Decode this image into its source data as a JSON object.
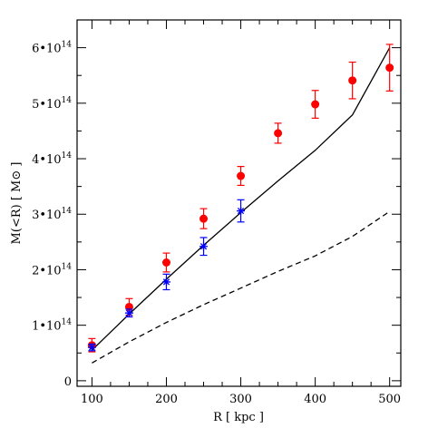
{
  "chart_data": {
    "type": "scatter",
    "title": "",
    "xlabel": "R [ kpc ]",
    "ylabel": "M(<R) [ M⊙ ]",
    "xlim": [
      80,
      515
    ],
    "ylim": [
      -0.1,
      6.5
    ],
    "y_unit_exponent": 14,
    "x_ticks": [
      100,
      200,
      300,
      400,
      500
    ],
    "x_minor_ticks": [
      125,
      150,
      175,
      225,
      250,
      275,
      325,
      350,
      375,
      425,
      450,
      475
    ],
    "y_ticks": [
      {
        "value": 0,
        "base": "0",
        "exp": ""
      },
      {
        "value": 1,
        "base": "1•10",
        "exp": "14"
      },
      {
        "value": 2,
        "base": "2•10",
        "exp": "14"
      },
      {
        "value": 3,
        "base": "3•10",
        "exp": "14"
      },
      {
        "value": 4,
        "base": "4•10",
        "exp": "14"
      },
      {
        "value": 5,
        "base": "5•10",
        "exp": "14"
      },
      {
        "value": 6,
        "base": "6•10",
        "exp": "14"
      }
    ],
    "y_minor_ticks": [
      0.5,
      1.5,
      2.5,
      3.5,
      4.5,
      5.5
    ],
    "series": [
      {
        "marker": "circle",
        "color": "#ff0000",
        "x": [
          100,
          150,
          200,
          250,
          300,
          350,
          400,
          450,
          500
        ],
        "y": [
          0.64,
          1.33,
          2.13,
          2.92,
          3.69,
          4.46,
          4.98,
          5.41,
          5.64
        ],
        "err_low": [
          0.12,
          0.15,
          0.17,
          0.18,
          0.17,
          0.18,
          0.25,
          0.33,
          0.42
        ],
        "err_high": [
          0.12,
          0.15,
          0.17,
          0.18,
          0.17,
          0.18,
          0.25,
          0.33,
          0.42
        ]
      },
      {
        "marker": "asterisk",
        "color": "#0000ff",
        "x": [
          100,
          150,
          200,
          250,
          300
        ],
        "y": [
          0.6,
          1.22,
          1.78,
          2.42,
          3.06
        ],
        "err_low": [
          0.06,
          0.07,
          0.14,
          0.16,
          0.2
        ],
        "err_high": [
          0.06,
          0.07,
          0.14,
          0.16,
          0.2
        ]
      },
      {
        "style": "solid",
        "color": "#000000",
        "x": [
          100,
          150,
          200,
          250,
          300,
          350,
          400,
          450,
          500
        ],
        "y": [
          0.55,
          1.2,
          1.83,
          2.44,
          3.03,
          3.6,
          4.15,
          4.79,
          6.0
        ]
      },
      {
        "style": "dashed",
        "color": "#000000",
        "x": [
          100,
          150,
          200,
          250,
          300,
          350,
          400,
          450,
          500
        ],
        "y": [
          0.32,
          0.7,
          1.05,
          1.37,
          1.67,
          1.97,
          2.25,
          2.6,
          3.05
        ]
      }
    ]
  }
}
